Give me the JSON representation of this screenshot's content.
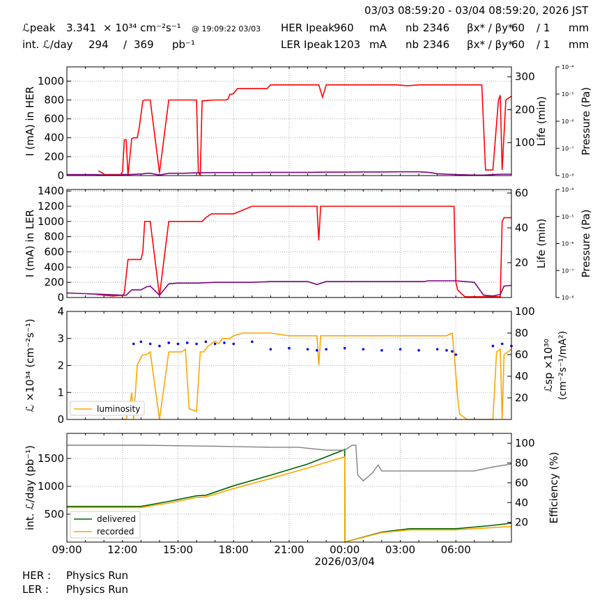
{
  "header": {
    "date_range": "03/03 08:59:20 - 03/04 08:59:20, 2026 JST",
    "lpeak_label": "ℒpeak",
    "lpeak_value": "3.341",
    "lpeak_unit": "× 10³⁴ cm⁻²s⁻¹",
    "lpeak_time": "@ 19:09:22 03/03",
    "intl_label": "int. ℒ/day",
    "intl_delivered": "294",
    "intl_slash": "/",
    "intl_recorded": "369",
    "intl_unit": "pb⁻¹",
    "her_label": "HER Ipeak",
    "her_ipeak": "960",
    "ler_label": "LER Ipeak",
    "ler_ipeak": "1203",
    "ma_unit": "mA",
    "nb_label": "nb",
    "her_nb": "2346",
    "ler_nb": "2346",
    "beta_label": "βx* / βy*",
    "her_betax": "60",
    "her_betay": "/ 1",
    "ler_betax": "60",
    "ler_betay": "/ 1",
    "mm_unit": "mm"
  },
  "footer": {
    "her_label": "HER :",
    "her_status": "Physics Run",
    "ler_label": "LER :",
    "ler_status": "Physics Run"
  },
  "colors": {
    "current": "#ff0000",
    "lifetime": "#00ffff",
    "pressure": "#800080",
    "lumi": "#ffa500",
    "lsp": "#0000ff",
    "delivered": "#006400",
    "recorded": "#ffa500",
    "efficiency": "#808080"
  },
  "chart_data": [
    {
      "type": "line",
      "panel": "her",
      "ylabel": "I (mA) in HER",
      "ylim": [
        0,
        1150
      ],
      "yticks": [
        "0",
        "200",
        "400",
        "600",
        "800",
        "1000"
      ],
      "y2label": "Life (min)",
      "y2lim": [
        0,
        330
      ],
      "y2ticks": [
        "100",
        "200",
        "300"
      ],
      "y3label": "Pressure (Pa)",
      "y3ticks": [
        "10⁻⁸",
        "10⁻⁷",
        "10⁻⁶",
        "10⁻⁵",
        "10⁻⁴"
      ],
      "xlim": [
        0,
        24
      ],
      "series": [
        {
          "role": "current",
          "x": [
            0,
            0.8,
            1.7,
            1.9,
            2.0,
            2.9,
            3.0,
            3.05,
            3.1,
            3.2,
            3.3,
            3.5,
            3.6,
            3.8,
            3.9,
            4.1,
            4.2,
            4.4,
            4.5,
            5.0,
            5.5,
            6.3,
            7.0,
            7.1,
            7.2,
            7.3,
            8.0,
            8.6,
            8.7,
            8.8,
            8.9,
            9.0,
            9.2,
            9.4,
            10.0,
            10.8,
            11.0,
            12.0,
            13.0,
            13.5,
            13.6,
            13.8,
            14.0,
            15.0,
            15.9,
            16.0,
            16.2,
            16.5,
            17.0,
            17.3,
            17.8,
            18.4,
            19.0,
            19.5,
            20.0,
            20.5,
            20.9,
            21.0,
            21.1,
            21.2,
            21.4,
            21.5,
            21.6,
            21.8,
            22.0,
            22.2,
            22.4,
            22.6,
            23.0,
            23.3,
            23.4,
            23.5,
            23.7,
            24.0
          ],
          "y": [
            null,
            null,
            50,
            30,
            10,
            10,
            40,
            200,
            380,
            380,
            0,
            390,
            400,
            400,
            500,
            790,
            800,
            800,
            800,
            30,
            800,
            800,
            800,
            30,
            5,
            790,
            800,
            800,
            810,
            860,
            860,
            870,
            920,
            920,
            920,
            920,
            960,
            960,
            960,
            960,
            960,
            830,
            960,
            960,
            960,
            960,
            960,
            960,
            960,
            960,
            960,
            950,
            960,
            960,
            960,
            960,
            960,
            960,
            960,
            960,
            960,
            960,
            960,
            960,
            960,
            960,
            960,
            60,
            60,
            800,
            850,
            60,
            800,
            840
          ]
        },
        {
          "role": "pressure",
          "x": [
            0,
            1.5,
            2.0,
            2.9,
            3.1,
            3.4,
            4.1,
            4.3,
            4.5,
            5.0,
            5.5,
            6.3,
            7.1,
            7.3,
            8.0,
            9.0,
            10.0,
            11.0,
            12.0,
            13.0,
            14.0,
            15.0,
            16.0,
            17.0,
            18.0,
            18.5,
            19.0,
            19.5,
            20.0,
            20.5,
            21.0,
            21.5,
            22.0,
            22.5,
            23.0,
            23.5,
            24.0
          ],
          "y": [
            10,
            10,
            5,
            5,
            12,
            10,
            18,
            24,
            24,
            5,
            24,
            24,
            30,
            30,
            32,
            32,
            32,
            34,
            34,
            34,
            36,
            36,
            38,
            38,
            40,
            40,
            40,
            35,
            20,
            15,
            10,
            8,
            5,
            5,
            10,
            15,
            15
          ]
        }
      ]
    },
    {
      "type": "line",
      "panel": "ler",
      "ylabel": "I (mA) in LER",
      "ylim": [
        0,
        1420
      ],
      "yticks": [
        "0",
        "200",
        "400",
        "600",
        "800",
        "1000",
        "1200",
        "1400"
      ],
      "y2label": "Life (min)",
      "y2lim": [
        0,
        62
      ],
      "y2ticks": [
        "20",
        "40",
        "60"
      ],
      "y3label": "Pressure (Pa)",
      "y3ticks": [
        "10⁻⁸",
        "10⁻⁷",
        "10⁻⁶",
        "10⁻⁵",
        "10⁻⁴"
      ],
      "xlim": [
        0,
        24
      ],
      "series": [
        {
          "role": "current",
          "x": [
            0,
            1.6,
            2.0,
            2.5,
            2.9,
            3.0,
            3.1,
            3.3,
            3.5,
            3.6,
            3.7,
            4.0,
            4.1,
            4.2,
            4.3,
            4.5,
            5.0,
            5.5,
            6.2,
            7.0,
            7.1,
            7.3,
            7.5,
            7.8,
            8.0,
            8.5,
            9.0,
            9.5,
            10.0,
            11.0,
            12.0,
            13.0,
            13.4,
            13.5,
            13.6,
            13.7,
            14.0,
            15.0,
            16.0,
            17.0,
            18.0,
            18.5,
            19.0,
            19.5,
            20.0,
            20.5,
            20.9,
            21.0,
            21.1,
            21.3,
            21.5,
            21.7,
            21.9,
            22.0,
            22.2,
            22.4,
            22.6,
            23.0,
            23.2,
            23.4,
            23.5,
            23.6,
            23.8,
            24.0
          ],
          "y": [
            null,
            40,
            30,
            20,
            30,
            20,
            60,
            500,
            500,
            500,
            500,
            500,
            600,
            1000,
            1000,
            1000,
            20,
            1000,
            1000,
            1000,
            1000,
            1000,
            1050,
            1100,
            1100,
            1100,
            1100,
            1150,
            1200,
            1200,
            1200,
            1200,
            1200,
            1200,
            750,
            1200,
            1200,
            1200,
            1200,
            1200,
            1200,
            1200,
            1200,
            1200,
            1200,
            1200,
            1200,
            200,
            100,
            50,
            10,
            10,
            10,
            10,
            10,
            10,
            10,
            10,
            10,
            10,
            1000,
            1050,
            1050,
            1050
          ]
        },
        {
          "role": "pressure",
          "x": [
            0,
            1.0,
            2.0,
            3.0,
            3.2,
            3.5,
            4.0,
            4.3,
            4.5,
            5.0,
            5.5,
            6.0,
            7.0,
            8.0,
            9.0,
            10.0,
            11.0,
            12.0,
            13.0,
            13.5,
            14.0,
            15.0,
            16.0,
            17.0,
            18.0,
            18.5,
            19.0,
            19.3,
            19.5,
            20.0,
            21.0,
            22.0,
            22.5,
            23.0,
            23.4,
            23.6,
            24.0
          ],
          "y": [
            60,
            50,
            40,
            30,
            30,
            100,
            100,
            140,
            150,
            30,
            180,
            190,
            190,
            200,
            200,
            200,
            210,
            210,
            210,
            170,
            210,
            210,
            210,
            210,
            210,
            210,
            210,
            210,
            220,
            220,
            220,
            200,
            30,
            20,
            40,
            150,
            160
          ]
        }
      ]
    },
    {
      "type": "line",
      "panel": "lumi",
      "ylabel": "ℒ ×10³⁴ (cm⁻²s⁻¹)",
      "ylim": [
        0,
        4
      ],
      "yticks": [
        "0",
        "1",
        "2",
        "3",
        "4"
      ],
      "y2label": "ℒsp ×10³⁰ (cm⁻²s⁻¹/mA²)",
      "y2lim": [
        0,
        100
      ],
      "y2ticks": [
        "20",
        "40",
        "60",
        "80",
        "100"
      ],
      "legend": [
        "luminosity"
      ],
      "legend_placement": "bottom-left",
      "xlim": [
        0,
        24
      ],
      "series": [
        {
          "role": "lumi",
          "name": "luminosity",
          "x": [
            0,
            3.0,
            3.2,
            3.4,
            3.5,
            3.6,
            3.8,
            4.0,
            4.1,
            4.2,
            4.3,
            4.5,
            5.0,
            5.5,
            6.2,
            6.4,
            6.6,
            7.0,
            7.2,
            7.4,
            7.5,
            7.6,
            7.8,
            8.0,
            8.2,
            8.4,
            8.6,
            8.8,
            9.0,
            9.5,
            10.0,
            11.0,
            12.0,
            13.0,
            13.5,
            13.6,
            13.7,
            14.0,
            15.0,
            16.0,
            17.0,
            18.0,
            19.0,
            20.0,
            20.5,
            20.8,
            20.9,
            21.1,
            21.2,
            21.4,
            21.6,
            22.0,
            22.5,
            23.0,
            23.2,
            23.4,
            23.5,
            23.6,
            23.8,
            24.0
          ],
          "y": [
            null,
            0,
            0,
            0.5,
            1.0,
            0,
            2.0,
            2.3,
            2.4,
            2.4,
            2.4,
            2.5,
            0,
            2.5,
            2.5,
            2.6,
            0.4,
            0.3,
            2.5,
            2.5,
            2.6,
            2.7,
            2.8,
            2.9,
            2.8,
            3.0,
            3.0,
            3.0,
            3.1,
            3.2,
            3.2,
            3.2,
            3.1,
            3.1,
            3.1,
            2.0,
            3.1,
            3.1,
            3.1,
            3.1,
            3.1,
            3.1,
            3.1,
            3.1,
            3.1,
            3.2,
            2.5,
            0.8,
            0.2,
            0.1,
            0,
            0,
            0,
            0,
            2.5,
            2.6,
            0,
            2.4,
            2.5,
            2.6
          ]
        },
        {
          "role": "lsp",
          "x": [
            3.6,
            4.0,
            4.5,
            5.0,
            5.5,
            6.0,
            6.5,
            7.0,
            7.5,
            8.0,
            8.5,
            9.0,
            10.0,
            11.0,
            12.0,
            13.0,
            13.5,
            14.0,
            15.0,
            16.0,
            17.0,
            18.0,
            19.0,
            20.0,
            20.5,
            20.8,
            21.0,
            23.0,
            23.5,
            24.0
          ],
          "y": [
            70,
            72,
            70,
            68,
            71,
            70,
            71,
            70,
            72,
            70,
            71,
            70,
            72,
            65,
            66,
            65,
            64,
            65,
            66,
            65,
            64,
            65,
            64,
            65,
            64,
            63,
            60,
            68,
            70,
            68
          ]
        }
      ]
    },
    {
      "type": "line",
      "panel": "intl",
      "ylabel": "int. ℒ/day (pb⁻¹)",
      "ylim": [
        0,
        1950
      ],
      "yticks": [
        "500",
        "1000",
        "1500"
      ],
      "y2label": "Efficiency (%)",
      "y2lim": [
        0,
        110
      ],
      "y2ticks": [
        "20",
        "40",
        "60",
        "80",
        "100"
      ],
      "xlabel": "2026/03/04",
      "xticks": [
        "09:00",
        "12:00",
        "15:00",
        "18:00",
        "21:00",
        "00:00",
        "03:00",
        "06:00"
      ],
      "legend": [
        "delivered",
        "recorded"
      ],
      "legend_placement": "bottom-left",
      "xlim": [
        0,
        24
      ],
      "series": [
        {
          "role": "delivered",
          "name": "delivered",
          "x": [
            0,
            3.0,
            4.0,
            5.5,
            7.0,
            7.5,
            9.0,
            11.0,
            13.0,
            15.0,
            15.01,
            17.0,
            18.5,
            20.0,
            21.0,
            23.0,
            24.0
          ],
          "y": [
            640,
            640,
            640,
            730,
            830,
            840,
            1010,
            1200,
            1400,
            1660,
            0,
            180,
            240,
            240,
            240,
            300,
            340
          ]
        },
        {
          "role": "recorded",
          "name": "recorded",
          "x": [
            0,
            3.0,
            4.0,
            5.5,
            7.0,
            7.5,
            9.0,
            11.0,
            13.0,
            15.0,
            15.01,
            17.0,
            18.5,
            20.0,
            21.0,
            23.0,
            24.0
          ],
          "y": [
            620,
            620,
            620,
            700,
            800,
            810,
            960,
            1140,
            1330,
            1530,
            0,
            170,
            220,
            220,
            220,
            260,
            280
          ]
        },
        {
          "role": "efficiency",
          "x": [
            0,
            4.0,
            8.0,
            11.0,
            12.5,
            14.0,
            15.0,
            15.4,
            15.6,
            15.7,
            16.0,
            16.5,
            16.8,
            17.0,
            18.0,
            19.0,
            20.0,
            21.0,
            22.0,
            23.0,
            24.0
          ],
          "y": [
            98,
            98,
            97,
            96,
            96,
            93,
            93,
            98,
            98,
            68,
            62,
            70,
            78,
            72,
            72,
            72,
            72,
            72,
            72,
            76,
            79
          ]
        }
      ]
    }
  ]
}
